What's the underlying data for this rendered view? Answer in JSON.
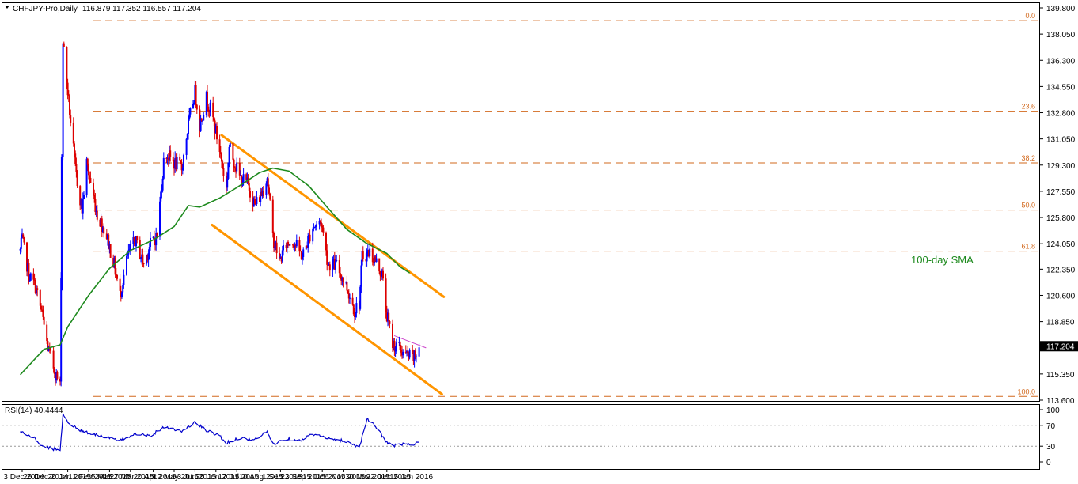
{
  "header": {
    "symbol": "CHFJPY-Pro,Daily",
    "ohlc": "116.879 117.352 116.557 117.204"
  },
  "rsi_header": "RSI(14) 40.4444",
  "last_price": "117.204",
  "sma_label": "100-day SMA",
  "colors": {
    "bull_candle": "#0000ff",
    "bear_candle": "#dd0000",
    "sma": "#1e8a1e",
    "channel": "#ff9500",
    "fib": "#d2691e",
    "rsi": "#0000cc",
    "resistance": "#cc44cc",
    "price_badge": "#000000"
  },
  "chart_data": [
    {
      "type": "candlestick",
      "y_ticks": [
        "139.800",
        "138.050",
        "136.300",
        "134.550",
        "132.800",
        "131.050",
        "129.300",
        "127.550",
        "125.800",
        "124.050",
        "122.350",
        "120.600",
        "118.850",
        "117.100",
        "115.350",
        "113.600"
      ],
      "ylim": [
        113.6,
        139.8
      ],
      "x_ticks": [
        "3 Dec 2014",
        "26 Dec 2014",
        "20 Jan 2015",
        "11 Feb 2015",
        "5 Mar 2015",
        "27 Mar 2015",
        "20 Apr 2015",
        "12 May 2015",
        "3 Jun 2015",
        "25 Jun 2015",
        "17 Jul 2015",
        "10 Aug 2015",
        "1 Sep 2015",
        "23 Sep 2015",
        "15 Oct 2015",
        "6 Nov 2015",
        "30 Nov 2015",
        "22 Dec 2015",
        "15 Jan 2016"
      ],
      "fibonacci": [
        {
          "label": "0.0",
          "price": 138.95
        },
        {
          "label": "23.6",
          "price": 132.9
        },
        {
          "label": "38.2",
          "price": 129.45
        },
        {
          "label": "50.0",
          "price": 126.3
        },
        {
          "label": "61.8",
          "price": 123.55
        },
        {
          "label": "100.0",
          "price": 113.85
        }
      ],
      "price_path": [
        {
          "date": "2014-12-01",
          "close": 123.6
        },
        {
          "date": "2014-12-03",
          "close": 124.3
        },
        {
          "date": "2014-12-10",
          "close": 122.0
        },
        {
          "date": "2014-12-17",
          "close": 121.2
        },
        {
          "date": "2014-12-24",
          "close": 119.3
        },
        {
          "date": "2014-12-30",
          "close": 117.1
        },
        {
          "date": "2015-01-08",
          "close": 115.2
        },
        {
          "date": "2015-01-12",
          "close": 114.5
        },
        {
          "date": "2015-01-15",
          "close": 137.6
        },
        {
          "date": "2015-01-20",
          "close": 134.2
        },
        {
          "date": "2015-01-28",
          "close": 129.0
        },
        {
          "date": "2015-02-04",
          "close": 126.3
        },
        {
          "date": "2015-02-09",
          "close": 129.4
        },
        {
          "date": "2015-02-20",
          "close": 126.0
        },
        {
          "date": "2015-03-01",
          "close": 124.8
        },
        {
          "date": "2015-03-10",
          "close": 122.6
        },
        {
          "date": "2015-03-16",
          "close": 120.6
        },
        {
          "date": "2015-03-24",
          "close": 123.2
        },
        {
          "date": "2015-04-01",
          "close": 124.3
        },
        {
          "date": "2015-04-10",
          "close": 122.7
        },
        {
          "date": "2015-04-17",
          "close": 124.0
        },
        {
          "date": "2015-04-24",
          "close": 124.6
        },
        {
          "date": "2015-05-02",
          "close": 130.2
        },
        {
          "date": "2015-05-11",
          "close": 129.5
        },
        {
          "date": "2015-05-20",
          "close": 129.1
        },
        {
          "date": "2015-05-27",
          "close": 132.0
        },
        {
          "date": "2015-06-03",
          "close": 134.2
        },
        {
          "date": "2015-06-08",
          "close": 132.0
        },
        {
          "date": "2015-06-15",
          "close": 133.8
        },
        {
          "date": "2015-06-22",
          "close": 132.4
        },
        {
          "date": "2015-06-29",
          "close": 130.3
        },
        {
          "date": "2015-07-06",
          "close": 127.7
        },
        {
          "date": "2015-07-09",
          "close": 130.5
        },
        {
          "date": "2015-07-20",
          "close": 128.5
        },
        {
          "date": "2015-07-29",
          "close": 128.0
        },
        {
          "date": "2015-08-05",
          "close": 126.6
        },
        {
          "date": "2015-08-12",
          "close": 127.4
        },
        {
          "date": "2015-08-18",
          "close": 128.6
        },
        {
          "date": "2015-08-24",
          "close": 124.5
        },
        {
          "date": "2015-08-31",
          "close": 122.9
        },
        {
          "date": "2015-09-07",
          "close": 124.0
        },
        {
          "date": "2015-09-14",
          "close": 124.3
        },
        {
          "date": "2015-09-24",
          "close": 123.2
        },
        {
          "date": "2015-10-05",
          "close": 125.2
        },
        {
          "date": "2015-10-14",
          "close": 125.5
        },
        {
          "date": "2015-10-21",
          "close": 122.7
        },
        {
          "date": "2015-10-30",
          "close": 122.6
        },
        {
          "date": "2015-11-09",
          "close": 121.3
        },
        {
          "date": "2015-11-18",
          "close": 119.6
        },
        {
          "date": "2015-11-23",
          "close": 120.1
        },
        {
          "date": "2015-11-26",
          "close": 123.2
        },
        {
          "date": "2015-12-04",
          "close": 123.5
        },
        {
          "date": "2015-12-11",
          "close": 122.8
        },
        {
          "date": "2015-12-17",
          "close": 122.0
        },
        {
          "date": "2015-12-21",
          "close": 119.6
        },
        {
          "date": "2015-12-28",
          "close": 117.4
        },
        {
          "date": "2016-01-05",
          "close": 117.0
        },
        {
          "date": "2016-01-11",
          "close": 116.6
        },
        {
          "date": "2016-01-20",
          "close": 116.4
        },
        {
          "date": "2016-01-25",
          "close": 117.2
        }
      ],
      "sma_100": [
        {
          "date": "2014-12-01",
          "value": 115.3
        },
        {
          "date": "2014-12-26",
          "value": 117.0
        },
        {
          "date": "2015-01-12",
          "value": 117.3
        },
        {
          "date": "2015-01-20",
          "value": 118.5
        },
        {
          "date": "2015-02-11",
          "value": 120.6
        },
        {
          "date": "2015-03-05",
          "value": 122.4
        },
        {
          "date": "2015-03-27",
          "value": 123.6
        },
        {
          "date": "2015-04-20",
          "value": 124.3
        },
        {
          "date": "2015-05-12",
          "value": 125.2
        },
        {
          "date": "2015-05-27",
          "value": 126.6
        },
        {
          "date": "2015-06-08",
          "value": 126.5
        },
        {
          "date": "2015-06-29",
          "value": 127.1
        },
        {
          "date": "2015-07-17",
          "value": 127.8
        },
        {
          "date": "2015-08-10",
          "value": 128.8
        },
        {
          "date": "2015-08-24",
          "value": 129.1
        },
        {
          "date": "2015-09-10",
          "value": 128.9
        },
        {
          "date": "2015-10-01",
          "value": 127.9
        },
        {
          "date": "2015-10-20",
          "value": 126.5
        },
        {
          "date": "2015-11-10",
          "value": 125.0
        },
        {
          "date": "2015-11-30",
          "value": 124.1
        },
        {
          "date": "2015-12-22",
          "value": 123.4
        },
        {
          "date": "2016-01-05",
          "value": 122.5
        },
        {
          "date": "2016-01-15",
          "value": 122.1
        }
      ],
      "channel_upper": [
        {
          "date": "2015-07-01",
          "price": 131.3
        },
        {
          "date": "2016-02-20",
          "price": 120.5
        }
      ],
      "channel_lower": [
        {
          "date": "2015-06-21",
          "price": 125.3
        },
        {
          "date": "2016-02-18",
          "price": 114.0
        }
      ],
      "resistance_line": [
        {
          "date": "2015-12-30",
          "price": 117.9
        },
        {
          "date": "2016-02-01",
          "price": 117.1
        }
      ]
    },
    {
      "type": "line",
      "name": "RSI(14)",
      "y_ticks": [
        "100",
        "70",
        "30",
        "0"
      ],
      "levels": [
        70,
        30
      ],
      "ylim": [
        0,
        100
      ],
      "points": [
        {
          "date": "2014-12-01",
          "value": 58
        },
        {
          "date": "2014-12-08",
          "value": 52
        },
        {
          "date": "2014-12-16",
          "value": 45
        },
        {
          "date": "2014-12-24",
          "value": 30
        },
        {
          "date": "2015-01-12",
          "value": 22
        },
        {
          "date": "2015-01-15",
          "value": 92
        },
        {
          "date": "2015-01-22",
          "value": 72
        },
        {
          "date": "2015-02-05",
          "value": 58
        },
        {
          "date": "2015-02-20",
          "value": 52
        },
        {
          "date": "2015-03-16",
          "value": 40
        },
        {
          "date": "2015-04-01",
          "value": 55
        },
        {
          "date": "2015-04-17",
          "value": 50
        },
        {
          "date": "2015-05-02",
          "value": 68
        },
        {
          "date": "2015-05-20",
          "value": 58
        },
        {
          "date": "2015-06-03",
          "value": 76
        },
        {
          "date": "2015-06-15",
          "value": 60
        },
        {
          "date": "2015-06-29",
          "value": 50
        },
        {
          "date": "2015-07-06",
          "value": 36
        },
        {
          "date": "2015-07-20",
          "value": 46
        },
        {
          "date": "2015-08-05",
          "value": 42
        },
        {
          "date": "2015-08-18",
          "value": 58
        },
        {
          "date": "2015-08-24",
          "value": 34
        },
        {
          "date": "2015-09-07",
          "value": 44
        },
        {
          "date": "2015-09-24",
          "value": 42
        },
        {
          "date": "2015-10-05",
          "value": 54
        },
        {
          "date": "2015-10-21",
          "value": 44
        },
        {
          "date": "2015-11-09",
          "value": 40
        },
        {
          "date": "2015-11-23",
          "value": 28
        },
        {
          "date": "2015-12-01",
          "value": 82
        },
        {
          "date": "2015-12-11",
          "value": 66
        },
        {
          "date": "2015-12-21",
          "value": 40
        },
        {
          "date": "2015-12-28",
          "value": 30
        },
        {
          "date": "2016-01-05",
          "value": 34
        },
        {
          "date": "2016-01-20",
          "value": 32
        },
        {
          "date": "2016-01-25",
          "value": 40
        }
      ]
    }
  ]
}
